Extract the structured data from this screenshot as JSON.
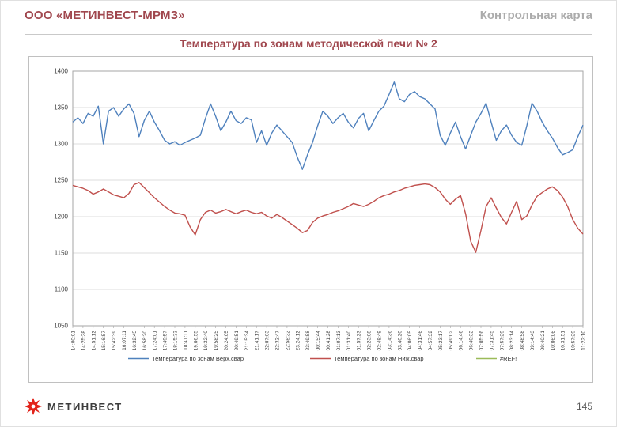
{
  "slide": {
    "header": {
      "company": "ООО «МЕТИНВЕСТ-МРМЗ»",
      "doc_type": "Контрольная карта"
    },
    "footer": {
      "brand": "МЕТИНВЕСТ",
      "page_number": "145"
    }
  },
  "colors": {
    "heading_red": "#A0474E",
    "heading_gray": "#ABABAB",
    "brand_red": "#E2231A",
    "grid_gray": "#D0D0D0",
    "axis_gray": "#A6A6A6"
  },
  "chart_data": {
    "type": "line",
    "title": "Температура по зонам методической печи № 2",
    "xlabel": "",
    "ylabel": "",
    "ylim": [
      1050,
      1400
    ],
    "ytick_step": 50,
    "grid": "horizontal",
    "legend_position": "bottom",
    "x_labels": [
      "14:00:01",
      "14:25:38",
      "14:51:12",
      "15:16:57",
      "15:42:39",
      "16:07:11",
      "16:32:45",
      "16:58:20",
      "17:24:01",
      "17:49:57",
      "18:15:33",
      "18:41:11",
      "19:06:55",
      "19:32:40",
      "19:58:25",
      "20:24:05",
      "20:49:51",
      "21:15:34",
      "21:41:17",
      "22:07:03",
      "22:32:47",
      "22:58:32",
      "23:24:12",
      "23:49:58",
      "00:15:44",
      "00:41:28",
      "01:07:13",
      "01:31:40",
      "01:57:23",
      "02:23:08",
      "02:48:49",
      "03:14:36",
      "03:40:20",
      "04:06:05",
      "04:31:46",
      "04:57:32",
      "05:23:17",
      "05:49:02",
      "06:14:46",
      "06:40:32",
      "07:05:56",
      "07:31:45",
      "07:57:29",
      "08:23:14",
      "08:48:58",
      "09:14:43",
      "09:40:21",
      "10:06:06",
      "10:31:51",
      "10:57:29",
      "11:23:10"
    ],
    "series": [
      {
        "name": "Температура по зонам Верх.свар",
        "color": "#4F81BD",
        "values": [
          1330,
          1336,
          1328,
          1342,
          1338,
          1352,
          1300,
          1345,
          1350,
          1338,
          1348,
          1355,
          1342,
          1310,
          1332,
          1345,
          1330,
          1318,
          1305,
          1300,
          1303,
          1298,
          1302,
          1305,
          1308,
          1312,
          1335,
          1355,
          1338,
          1318,
          1330,
          1345,
          1332,
          1328,
          1336,
          1333,
          1302,
          1318,
          1298,
          1315,
          1326,
          1318,
          1310,
          1302,
          1282,
          1265,
          1285,
          1302,
          1325,
          1345,
          1338,
          1328,
          1336,
          1342,
          1330,
          1322,
          1335,
          1342,
          1318,
          1332,
          1345,
          1352,
          1368,
          1385,
          1362,
          1358,
          1368,
          1372,
          1365,
          1362,
          1355,
          1348,
          1312,
          1298,
          1315,
          1330,
          1310,
          1293,
          1312,
          1330,
          1342,
          1356,
          1330,
          1305,
          1318,
          1326,
          1312,
          1302,
          1298,
          1325,
          1356,
          1345,
          1330,
          1318,
          1308,
          1295,
          1285,
          1288,
          1292,
          1310,
          1326
        ]
      },
      {
        "name": "Температура по зонам Ниж.свар",
        "color": "#C0504D",
        "values": [
          1243,
          1241,
          1239,
          1236,
          1231,
          1234,
          1238,
          1234,
          1230,
          1228,
          1226,
          1232,
          1244,
          1247,
          1240,
          1233,
          1226,
          1220,
          1214,
          1209,
          1205,
          1204,
          1202,
          1186,
          1175,
          1196,
          1206,
          1209,
          1205,
          1207,
          1210,
          1207,
          1204,
          1207,
          1209,
          1206,
          1204,
          1206,
          1201,
          1198,
          1203,
          1199,
          1194,
          1189,
          1184,
          1178,
          1181,
          1192,
          1198,
          1201,
          1203,
          1206,
          1208,
          1211,
          1214,
          1218,
          1216,
          1214,
          1217,
          1221,
          1226,
          1229,
          1231,
          1234,
          1236,
          1239,
          1241,
          1243,
          1244,
          1245,
          1244,
          1240,
          1234,
          1224,
          1217,
          1224,
          1229,
          1204,
          1166,
          1151,
          1181,
          1214,
          1226,
          1212,
          1199,
          1190,
          1206,
          1221,
          1196,
          1201,
          1216,
          1228,
          1233,
          1238,
          1241,
          1236,
          1227,
          1214,
          1196,
          1184,
          1176
        ]
      }
    ],
    "extra_legend": [
      {
        "name": "#REF!",
        "color": "#9BBB59"
      }
    ]
  }
}
